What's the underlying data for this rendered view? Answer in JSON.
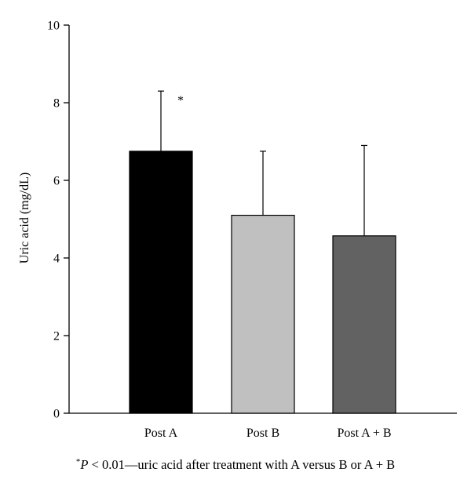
{
  "chart_data": {
    "type": "bar",
    "ylabel": "Uric acid (mg/dL)",
    "xlabel": "",
    "ylim": [
      0,
      10
    ],
    "yticks": [
      0,
      2,
      4,
      6,
      8,
      10
    ],
    "categories": [
      "Post A",
      "Post B",
      "Post A + B"
    ],
    "values": [
      6.75,
      5.1,
      4.57
    ],
    "errors": [
      1.55,
      1.65,
      2.33
    ],
    "colors": [
      "#000000",
      "#c0c0c0",
      "#626262"
    ],
    "annotations": [
      {
        "category": "Post A",
        "text": "*"
      }
    ],
    "grid": false
  },
  "footnote": {
    "marker": "*",
    "p": "P",
    "rest": " < 0.01—uric acid after treatment with A versus B or A + B"
  }
}
